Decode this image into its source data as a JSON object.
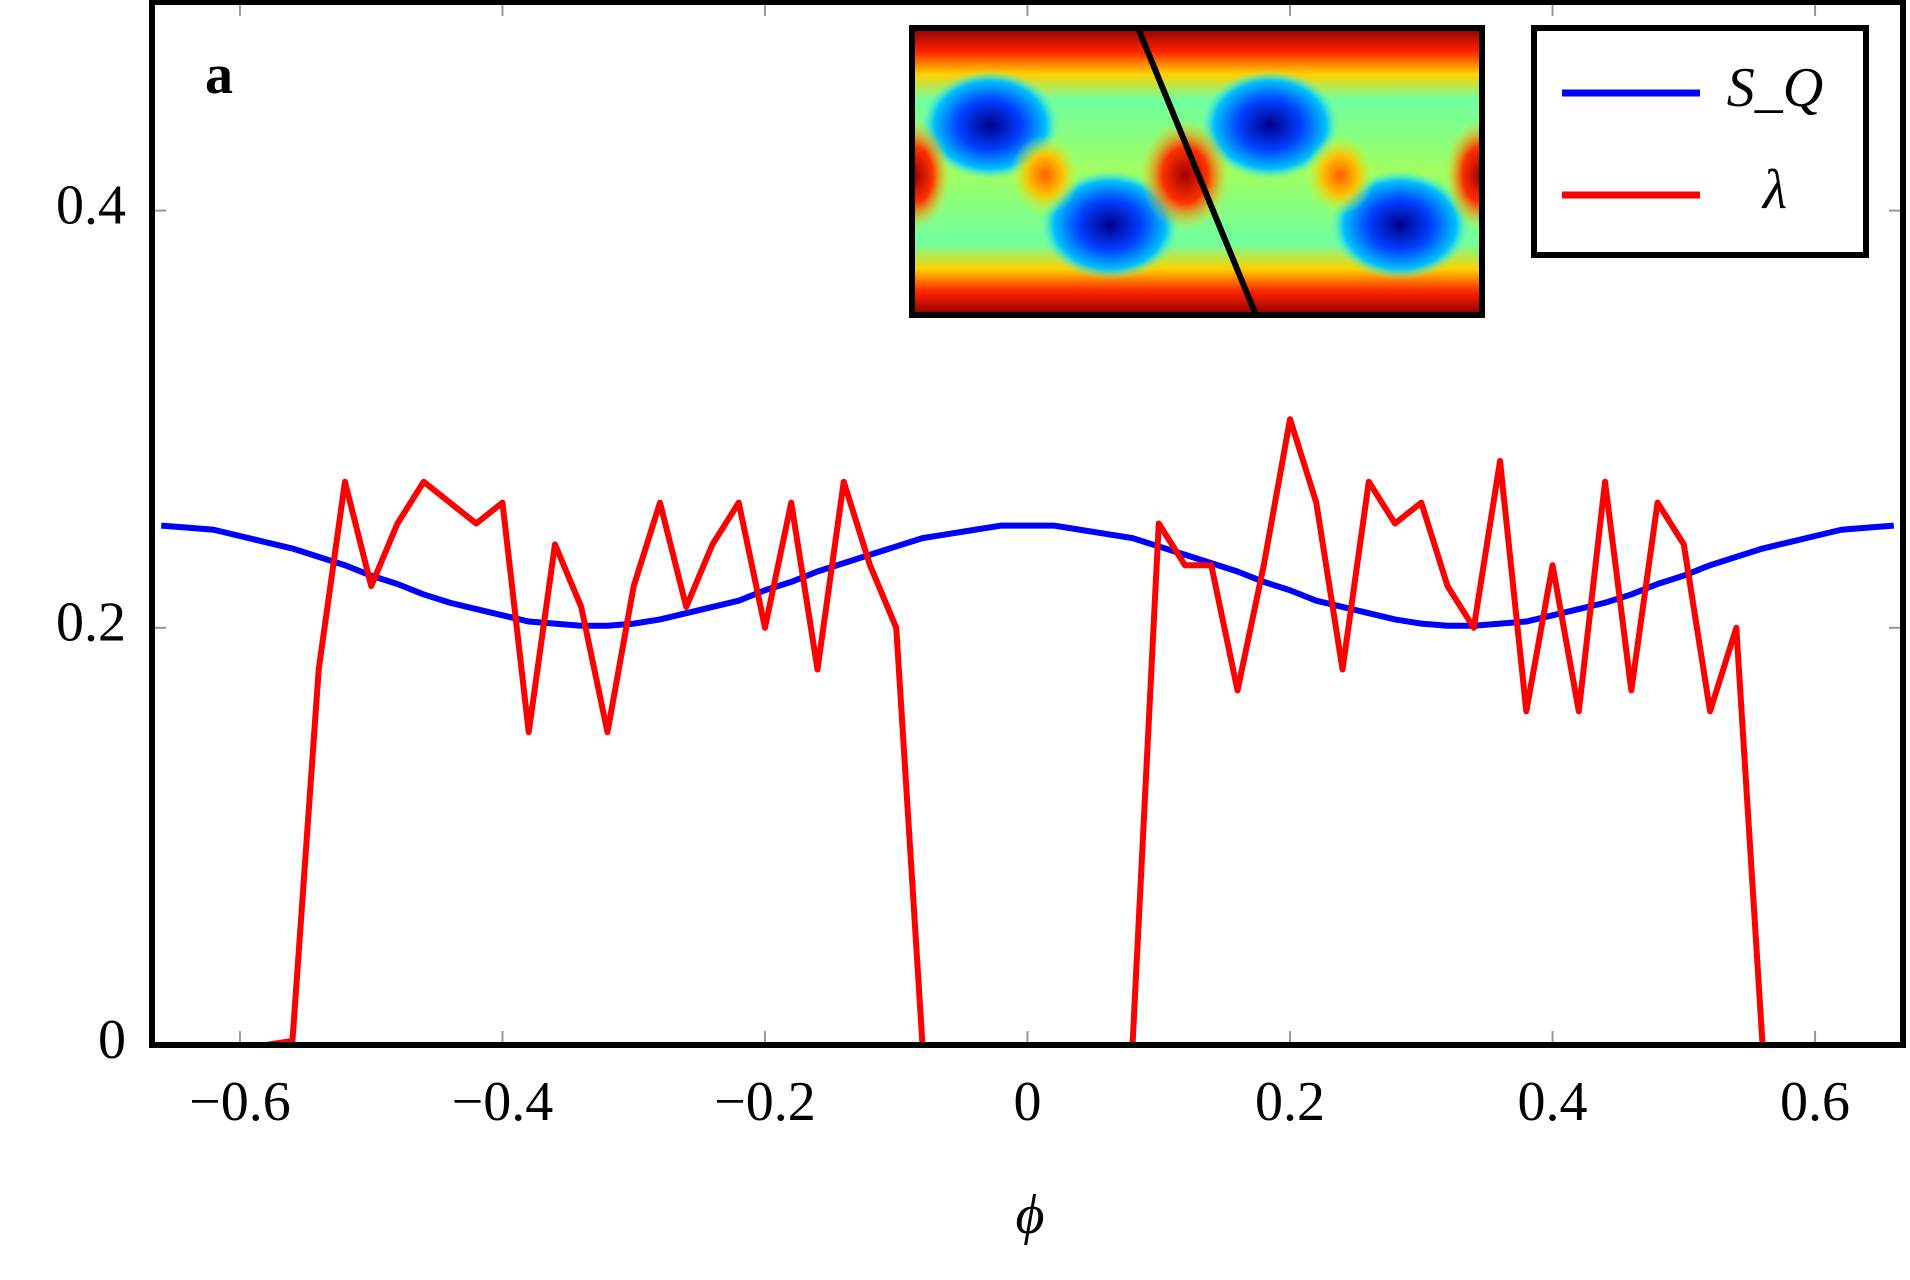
{
  "chart_data": {
    "type": "line",
    "panel_label": "a",
    "x_label": "ϕ",
    "x": [
      -0.66,
      -0.64,
      -0.62,
      -0.6,
      -0.58,
      -0.56,
      -0.54,
      -0.52,
      -0.5,
      -0.48,
      -0.46,
      -0.44,
      -0.42,
      -0.4,
      -0.38,
      -0.36,
      -0.34,
      -0.32,
      -0.3,
      -0.28,
      -0.26,
      -0.24,
      -0.22,
      -0.2,
      -0.18,
      -0.16,
      -0.14,
      -0.12,
      -0.1,
      -0.08,
      -0.06,
      -0.04,
      -0.02,
      0,
      0.02,
      0.04,
      0.06,
      0.08,
      0.1,
      0.12,
      0.14,
      0.16,
      0.18,
      0.2,
      0.22,
      0.24,
      0.26,
      0.28,
      0.3,
      0.32,
      0.34,
      0.36,
      0.38,
      0.4,
      0.42,
      0.44,
      0.46,
      0.48,
      0.5,
      0.52,
      0.54,
      0.56,
      0.58,
      0.6,
      0.62,
      0.64,
      0.66
    ],
    "series": [
      {
        "name": "S_Q",
        "color": "#0000ff",
        "values": [
          0.249,
          0.248,
          0.247,
          0.244,
          0.241,
          0.238,
          0.234,
          0.23,
          0.225,
          0.221,
          0.216,
          0.212,
          0.209,
          0.206,
          0.203,
          0.202,
          0.201,
          0.201,
          0.202,
          0.204,
          0.207,
          0.21,
          0.213,
          0.218,
          0.222,
          0.227,
          0.231,
          0.235,
          0.239,
          0.243,
          0.245,
          0.247,
          0.249,
          0.249,
          0.249,
          0.247,
          0.245,
          0.243,
          0.239,
          0.235,
          0.231,
          0.227,
          0.222,
          0.218,
          0.213,
          0.21,
          0.207,
          0.204,
          0.202,
          0.201,
          0.201,
          0.202,
          0.203,
          0.206,
          0.209,
          0.212,
          0.216,
          0.221,
          0.225,
          0.23,
          0.234,
          0.238,
          0.241,
          0.244,
          0.247,
          0.248,
          0.249
        ]
      },
      {
        "name": "λ",
        "color": "#ff0000",
        "values": [
          0,
          0,
          0,
          0,
          0,
          0.002,
          0.18,
          0.27,
          0.22,
          0.25,
          0.27,
          0.26,
          0.25,
          0.26,
          0.15,
          0.24,
          0.21,
          0.15,
          0.22,
          0.26,
          0.21,
          0.24,
          0.26,
          0.2,
          0.26,
          0.18,
          0.27,
          0.23,
          0.2,
          0,
          0,
          0,
          0,
          0,
          0,
          0,
          0,
          0,
          0.25,
          0.23,
          0.23,
          0.17,
          0.23,
          0.3,
          0.26,
          0.18,
          0.27,
          0.25,
          0.26,
          0.22,
          0.2,
          0.28,
          0.16,
          0.23,
          0.16,
          0.27,
          0.17,
          0.26,
          0.24,
          0.16,
          0.2,
          0,
          0,
          0,
          0,
          0,
          0
        ]
      }
    ],
    "xlim": [
      -0.667,
      0.667
    ],
    "ylim": [
      0,
      0.5
    ],
    "xticks": [
      {
        "value": -0.6,
        "label": "−0.6"
      },
      {
        "value": -0.4,
        "label": "−0.4"
      },
      {
        "value": -0.2,
        "label": "−0.2"
      },
      0,
      0.2,
      0.4,
      0.6
    ],
    "yticks": [
      0,
      0.2,
      0.4
    ]
  }
}
